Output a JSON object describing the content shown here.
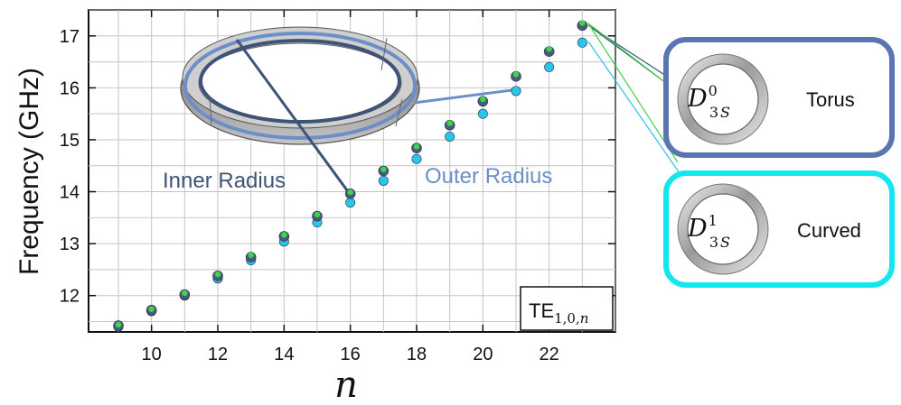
{
  "chart_data": {
    "type": "scatter",
    "xlabel": "n",
    "ylabel": "Frequency (GHz)",
    "xlim": [
      8.1,
      24.0
    ],
    "ylim": [
      11.3,
      17.5
    ],
    "xticks": [
      10,
      12,
      14,
      16,
      18,
      20,
      22
    ],
    "yticks": [
      12,
      13,
      14,
      15,
      16,
      17
    ],
    "grid": true,
    "mode_label": {
      "main": "TE",
      "sub": "1,0,",
      "sub_italic": "n"
    },
    "annotations": {
      "inner": "Inner Radius",
      "outer": "Outer Radius"
    },
    "series": [
      {
        "name": "Torus",
        "legend_symbol": {
          "letter": "D",
          "sup": "0",
          "sub_num": "3",
          "sub_var": "S"
        },
        "color": "#4a5a7c",
        "x": [
          9,
          10,
          11,
          12,
          13,
          14,
          15,
          16,
          17,
          18,
          19,
          20,
          21,
          22,
          23
        ],
        "y": [
          11.42,
          11.72,
          12.02,
          12.38,
          12.74,
          13.14,
          13.53,
          13.96,
          14.4,
          14.84,
          15.28,
          15.74,
          16.22,
          16.7,
          17.2
        ]
      },
      {
        "name": "",
        "color": "#3bd64a",
        "x": [
          9,
          10,
          11,
          12,
          13,
          14,
          15,
          16,
          17,
          18,
          19,
          20,
          21,
          22,
          23
        ],
        "y": [
          11.44,
          11.74,
          12.05,
          12.41,
          12.78,
          13.17,
          13.56,
          13.99,
          14.43,
          14.87,
          15.32,
          15.78,
          16.26,
          16.75,
          17.25
        ]
      },
      {
        "name": "Curved",
        "legend_symbol": {
          "letter": "D",
          "sup": "1",
          "sub_num": "3",
          "sub_var": "S"
        },
        "color": "#2cc4e8",
        "x": [
          9,
          10,
          11,
          12,
          13,
          14,
          15,
          16,
          17,
          18,
          19,
          20,
          21,
          22,
          23
        ],
        "y": [
          11.4,
          11.7,
          12.0,
          12.33,
          12.68,
          13.04,
          13.41,
          13.79,
          14.21,
          14.63,
          15.06,
          15.5,
          15.94,
          16.4,
          16.87
        ]
      }
    ],
    "legend_colors": {
      "torus_box": "#5a76b0",
      "curved_box": "#12e6ef"
    }
  }
}
